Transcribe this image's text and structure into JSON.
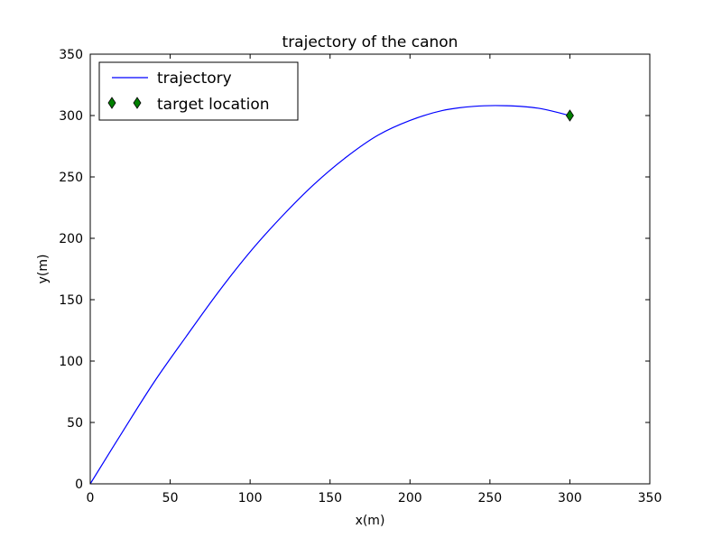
{
  "chart_data": {
    "type": "line",
    "title": "trajectory of the canon",
    "xlabel": "x(m)",
    "ylabel": "y(m)",
    "xlim": [
      0,
      350
    ],
    "ylim": [
      0,
      350
    ],
    "xticks": [
      0,
      50,
      100,
      150,
      200,
      250,
      300,
      350
    ],
    "yticks": [
      0,
      50,
      100,
      150,
      200,
      250,
      300,
      350
    ],
    "grid": false,
    "legend_position": "upper-left",
    "series": [
      {
        "name": "trajectory",
        "kind": "line",
        "color": "#0000ff",
        "x": [
          0,
          20,
          40,
          60,
          80,
          100,
          120,
          140,
          160,
          180,
          200,
          220,
          240,
          260,
          280,
          300
        ],
        "y": [
          0,
          42,
          83,
          120,
          156,
          189,
          218,
          244,
          266,
          284,
          296,
          304,
          307.5,
          308,
          306,
          300
        ]
      },
      {
        "name": "target location",
        "kind": "marker",
        "marker": "thin-diamond",
        "color": "#008000",
        "x": [
          300
        ],
        "y": [
          300
        ]
      }
    ]
  }
}
